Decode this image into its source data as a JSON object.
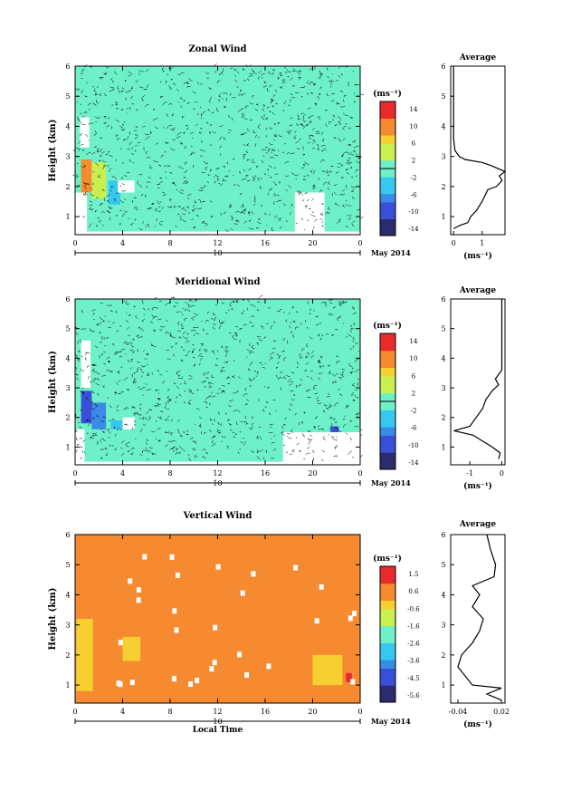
{
  "chart_data": [
    {
      "type": "heatmap",
      "title": "Zonal Wind",
      "ylabel": "Height (km)",
      "xlabel": "",
      "date_label": "10",
      "month_label": "May 2014",
      "x_ticks": [
        "0",
        "4",
        "8",
        "12",
        "16",
        "20",
        "0"
      ],
      "y_ticks": [
        "1",
        "2",
        "3",
        "4",
        "5",
        "6"
      ],
      "xlim": [
        0,
        24
      ],
      "ylim": [
        0.4,
        6.0
      ],
      "colorbar": {
        "unit": "(ms⁻¹)",
        "ticks": [
          "14",
          "10",
          "6",
          "2",
          "-2",
          "-6",
          "-10",
          "-14"
        ],
        "range": [
          -16,
          16
        ]
      },
      "regions": [
        {
          "x": [
            0,
            24
          ],
          "y": [
            0.5,
            6.0
          ],
          "value": -1
        },
        {
          "x": [
            0.5,
            1.4
          ],
          "y": [
            1.8,
            2.9
          ],
          "value": 12
        },
        {
          "x": [
            1.4,
            2.6
          ],
          "y": [
            1.6,
            2.8
          ],
          "value": 4
        },
        {
          "x": [
            2.8,
            3.8
          ],
          "y": [
            1.4,
            2.2
          ],
          "value": -4
        },
        {
          "x": [
            20.4,
            20.8
          ],
          "y": [
            1.2,
            1.7
          ],
          "value": 8
        }
      ],
      "blank_regions": [
        {
          "x": [
            0,
            1.0
          ],
          "y": [
            0.5,
            1.8
          ]
        },
        {
          "x": [
            0.4,
            1.2
          ],
          "y": [
            3.3,
            4.3
          ]
        },
        {
          "x": [
            18.5,
            21.0
          ],
          "y": [
            0.5,
            1.8
          ]
        },
        {
          "x": [
            3.6,
            5.0
          ],
          "y": [
            1.8,
            2.2
          ]
        }
      ],
      "average": {
        "title": "Average",
        "xlabel": "(ms⁻¹)",
        "x_ticks": [
          "0",
          "1"
        ],
        "xlim": [
          -0.1,
          1.8
        ],
        "profile": [
          [
            0.6,
            0.0
          ],
          [
            0.7,
            0.2
          ],
          [
            0.8,
            0.5
          ],
          [
            1.0,
            0.6
          ],
          [
            1.2,
            0.8
          ],
          [
            1.5,
            1.0
          ],
          [
            1.7,
            1.1
          ],
          [
            1.9,
            1.2
          ],
          [
            2.0,
            1.5
          ],
          [
            2.2,
            1.7
          ],
          [
            2.35,
            1.6
          ],
          [
            2.5,
            1.8
          ],
          [
            2.7,
            1.3
          ],
          [
            2.8,
            1.0
          ],
          [
            2.9,
            0.4
          ],
          [
            3.0,
            0.2
          ],
          [
            3.2,
            0.05
          ],
          [
            3.6,
            0.0
          ],
          [
            4.5,
            0.0
          ],
          [
            6.0,
            0.0
          ]
        ]
      }
    },
    {
      "type": "heatmap",
      "title": "Meridional Wind",
      "ylabel": "Height (km)",
      "xlabel": "",
      "date_label": "10",
      "month_label": "May 2014",
      "x_ticks": [
        "0",
        "4",
        "8",
        "12",
        "16",
        "20",
        "0"
      ],
      "y_ticks": [
        "1",
        "2",
        "3",
        "4",
        "5",
        "6"
      ],
      "xlim": [
        0,
        24
      ],
      "ylim": [
        0.4,
        6.0
      ],
      "colorbar": {
        "unit": "(ms⁻¹)",
        "ticks": [
          "14",
          "10",
          "6",
          "2",
          "-2",
          "-6",
          "-10",
          "-14"
        ],
        "range": [
          -16,
          16
        ]
      },
      "regions": [
        {
          "x": [
            0,
            24
          ],
          "y": [
            0.5,
            6.0
          ],
          "value": -1
        },
        {
          "x": [
            0.5,
            1.4
          ],
          "y": [
            1.8,
            2.9
          ],
          "value": -10
        },
        {
          "x": [
            1.4,
            2.6
          ],
          "y": [
            1.6,
            2.5
          ],
          "value": -6
        },
        {
          "x": [
            3.0,
            4.0
          ],
          "y": [
            1.6,
            1.9
          ],
          "value": -5
        },
        {
          "x": [
            21.5,
            22.2
          ],
          "y": [
            1.3,
            1.7
          ],
          "value": -10
        }
      ],
      "blank_regions": [
        {
          "x": [
            0,
            0.8
          ],
          "y": [
            0.5,
            1.6
          ]
        },
        {
          "x": [
            0.5,
            1.3
          ],
          "y": [
            3.0,
            4.6
          ]
        },
        {
          "x": [
            17.5,
            24
          ],
          "y": [
            0.5,
            1.5
          ]
        },
        {
          "x": [
            4.0,
            5.0
          ],
          "y": [
            1.6,
            2.0
          ]
        }
      ],
      "average": {
        "title": "Average",
        "xlabel": "(ms⁻¹)",
        "x_ticks": [
          "-1",
          "0"
        ],
        "xlim": [
          -1.6,
          0.1
        ],
        "profile": [
          [
            0.6,
            -0.1
          ],
          [
            0.8,
            -0.05
          ],
          [
            1.0,
            -0.3
          ],
          [
            1.2,
            -0.6
          ],
          [
            1.4,
            -0.9
          ],
          [
            1.55,
            -1.5
          ],
          [
            1.7,
            -1.0
          ],
          [
            2.0,
            -0.8
          ],
          [
            2.3,
            -0.6
          ],
          [
            2.6,
            -0.5
          ],
          [
            2.9,
            -0.3
          ],
          [
            3.1,
            -0.1
          ],
          [
            3.3,
            -0.2
          ],
          [
            3.6,
            0.0
          ],
          [
            4.5,
            0.0
          ],
          [
            6.0,
            0.0
          ]
        ]
      }
    },
    {
      "type": "heatmap",
      "title": "Vertical Wind",
      "ylabel": "Height (km)",
      "xlabel": "Local Time",
      "date_label": "10",
      "month_label": "May 2014",
      "x_ticks": [
        "0",
        "4",
        "8",
        "12",
        "16",
        "20",
        "0"
      ],
      "y_ticks": [
        "1",
        "2",
        "3",
        "4",
        "5",
        "6"
      ],
      "xlim": [
        0,
        24
      ],
      "ylim": [
        0.4,
        6.0
      ],
      "colorbar": {
        "unit": "(ms⁻¹)",
        "ticks": [
          "1.5",
          "0.6",
          "-0.6",
          "-1.6",
          "-2.6",
          "-3.6",
          "-4.5",
          "-5.6"
        ],
        "range": [
          -6.0,
          2.0
        ]
      },
      "regions": [
        {
          "x": [
            0,
            24
          ],
          "y": [
            0.4,
            6.0
          ],
          "value": 0.4
        },
        {
          "x": [
            0.1,
            1.5
          ],
          "y": [
            0.8,
            3.2
          ],
          "value": -0.3
        },
        {
          "x": [
            4.0,
            5.5
          ],
          "y": [
            1.8,
            2.6
          ],
          "value": -0.2
        },
        {
          "x": [
            20.0,
            22.5
          ],
          "y": [
            1.0,
            2.0
          ],
          "value": -0.1
        },
        {
          "x": [
            22.8,
            23.3
          ],
          "y": [
            1.1,
            1.4
          ],
          "value": 1.4
        }
      ],
      "blank_regions": [],
      "average": {
        "title": "Average",
        "xlabel": "(ms⁻¹)",
        "x_ticks": [
          "-0.04",
          "0.02"
        ],
        "xlim": [
          -0.05,
          0.025
        ],
        "profile": [
          [
            0.5,
            0.02
          ],
          [
            0.7,
            0.0
          ],
          [
            0.9,
            0.02
          ],
          [
            1.0,
            -0.02
          ],
          [
            1.3,
            -0.03
          ],
          [
            1.6,
            -0.04
          ],
          [
            2.0,
            -0.035
          ],
          [
            2.4,
            -0.02
          ],
          [
            2.8,
            -0.01
          ],
          [
            3.2,
            -0.005
          ],
          [
            3.6,
            -0.02
          ],
          [
            4.0,
            -0.01
          ],
          [
            4.3,
            -0.02
          ],
          [
            4.6,
            0.01
          ],
          [
            5.0,
            0.012
          ],
          [
            5.5,
            0.005
          ],
          [
            6.0,
            0.0
          ]
        ]
      }
    }
  ]
}
